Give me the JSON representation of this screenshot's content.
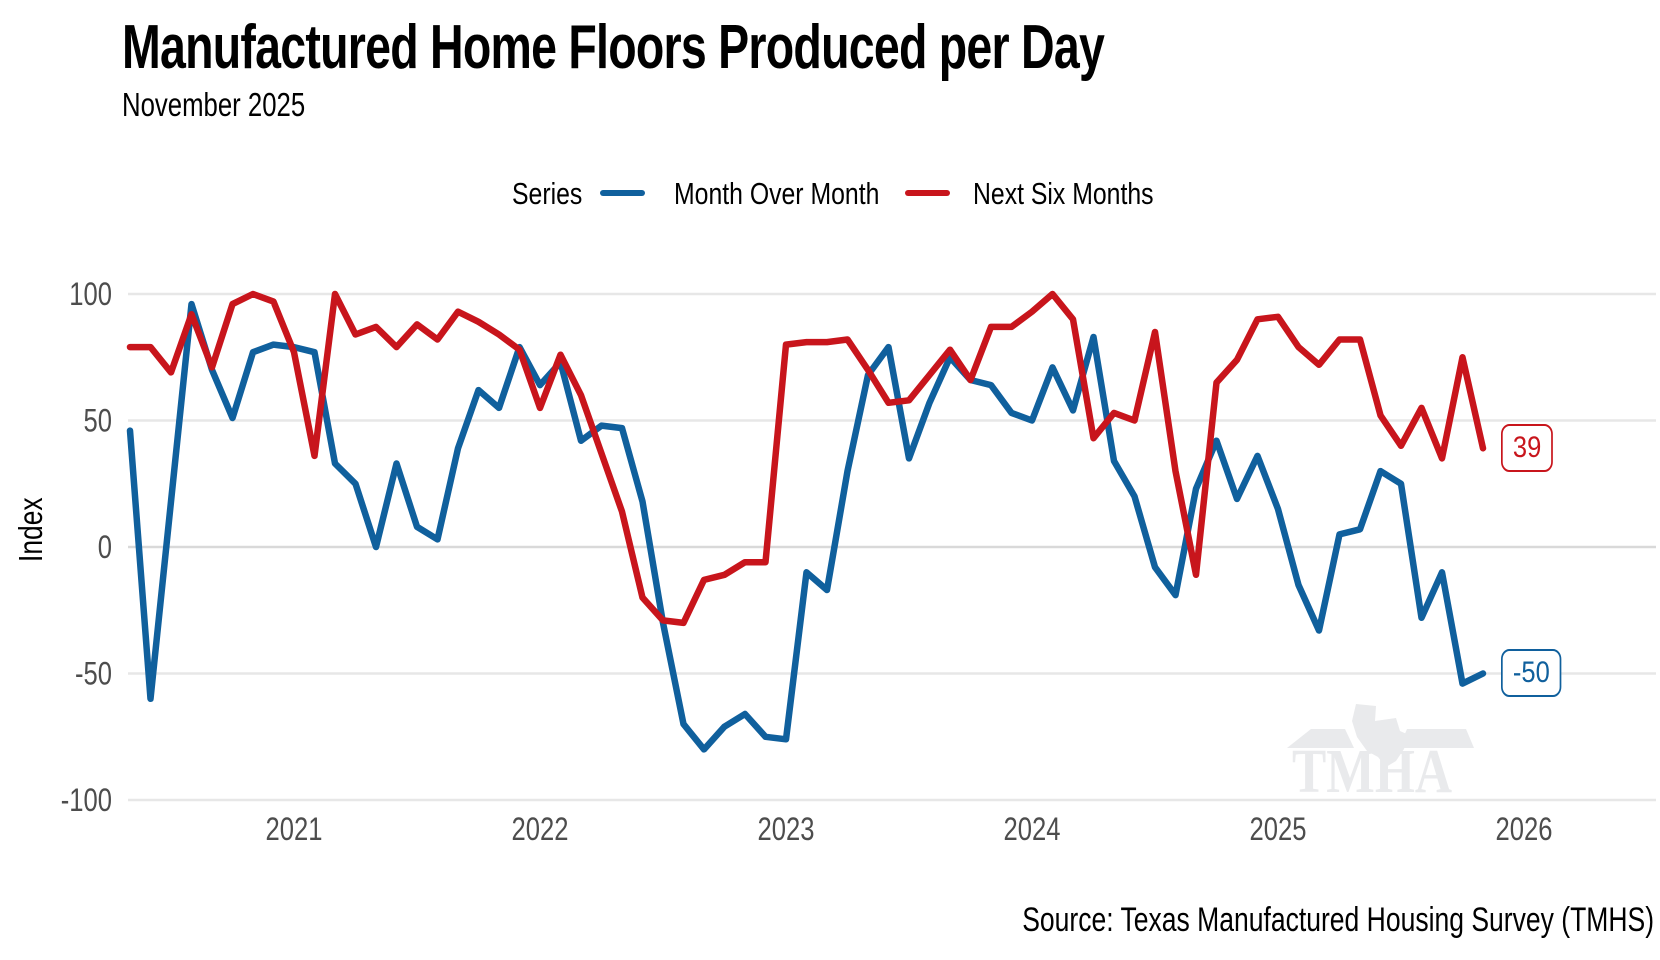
{
  "title": "Manufactured Home Floors Produced per Day",
  "subtitle": "November 2025",
  "legend": {
    "title": "Series",
    "series": [
      {
        "label": "Month Over Month",
        "color": "#10609d"
      },
      {
        "label": "Next Six Months",
        "color": "#c8151c"
      }
    ]
  },
  "y_axis": {
    "label": "Index",
    "ticks": [
      100,
      50,
      0,
      -50,
      -100
    ]
  },
  "x_axis": {
    "ticks": [
      "2021",
      "2022",
      "2023",
      "2024",
      "2025",
      "2026"
    ]
  },
  "end_labels": [
    {
      "text": "39",
      "color": "#c8151c"
    },
    {
      "text": "-50",
      "color": "#10609d"
    }
  ],
  "watermark": {
    "text": "TMHA",
    "color": "#e9eaec"
  },
  "source": "Source: Texas Manufactured Housing Survey (TMHS)",
  "colors": {
    "grid": "#e7e7e7",
    "grid_zero": "#d9d9d9",
    "tick_label": "#4d4d4d",
    "blue": "#10609d",
    "red": "#c8151c"
  },
  "chart_data": {
    "type": "line",
    "title": "Manufactured Home Floors Produced per Day",
    "subtitle": "November 2025",
    "xlabel": "",
    "ylabel": "Index",
    "ylim": [
      -100,
      100
    ],
    "grid": "horizontal",
    "legend_position": "top",
    "start_month": "2020-05",
    "end_month": "2025-11",
    "series": [
      {
        "name": "Month Over Month",
        "color": "#10609d",
        "values": [
          46,
          -60,
          18,
          96,
          70,
          51,
          77,
          80,
          79,
          77,
          33,
          25,
          0,
          33,
          8,
          3,
          39,
          62,
          55,
          79,
          64,
          73,
          42,
          48,
          47,
          18,
          -30,
          -70,
          -80,
          -71,
          -66,
          -75,
          -76,
          -10,
          -17,
          30,
          68,
          79,
          35,
          57,
          75,
          66,
          64,
          53,
          50,
          71,
          54,
          83,
          34,
          20,
          -8,
          -19,
          23,
          42,
          19,
          36,
          15,
          -15,
          -33,
          5,
          7,
          30,
          25,
          -28,
          -10,
          -54,
          -50
        ]
      },
      {
        "name": "Next Six Months",
        "color": "#c8151c",
        "values": [
          79,
          79,
          69,
          92,
          71,
          96,
          100,
          97,
          77,
          36,
          100,
          84,
          87,
          79,
          88,
          82,
          93,
          89,
          84,
          78,
          55,
          76,
          60,
          37,
          14,
          -20,
          -29,
          -30,
          -13,
          -11,
          -6,
          -6,
          80,
          81,
          81,
          82,
          70,
          57,
          58,
          68,
          78,
          66,
          87,
          87,
          93,
          100,
          90,
          43,
          53,
          50,
          85,
          30,
          -11,
          65,
          74,
          90,
          91,
          79,
          72,
          82,
          82,
          52,
          40,
          55,
          35,
          75,
          39
        ]
      }
    ]
  }
}
